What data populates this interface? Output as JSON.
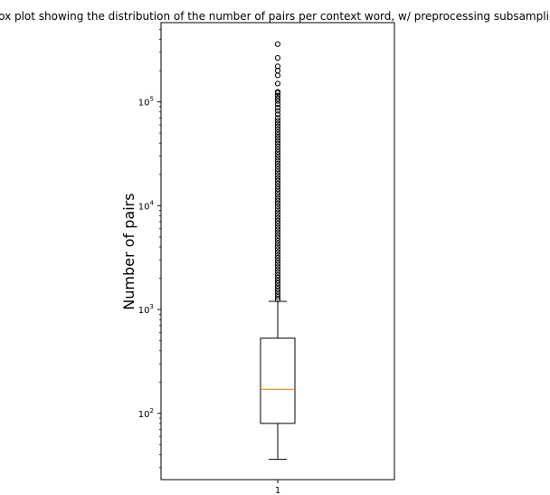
{
  "chart_data": {
    "type": "box",
    "title": "Box plot showing the distribution of the number of pairs per context word, w/ preprocessing subsampling",
    "ylabel": "Number of pairs",
    "xlabel": "",
    "yscale": "log",
    "ylim": [
      23,
      580000
    ],
    "categories": [
      "1"
    ],
    "yticks": [
      {
        "value": 100,
        "base": "10",
        "exp": "2"
      },
      {
        "value": 1000,
        "base": "10",
        "exp": "3"
      },
      {
        "value": 10000,
        "base": "10",
        "exp": "4"
      },
      {
        "value": 100000,
        "base": "10",
        "exp": "5"
      }
    ],
    "boxes": [
      {
        "category": "1",
        "whisker_low": 36,
        "q1": 80,
        "median": 170,
        "q3": 530,
        "whisker_high": 1200,
        "outliers": [
          1250,
          1320,
          1400,
          1490,
          1580,
          1680,
          1790,
          1900,
          2020,
          2150,
          2290,
          2440,
          2600,
          2770,
          2950,
          3140,
          3350,
          3570,
          3800,
          4050,
          4320,
          4600,
          4900,
          5220,
          5560,
          5920,
          6300,
          6720,
          7160,
          7630,
          8130,
          8660,
          9230,
          9840,
          10500,
          11200,
          11900,
          12700,
          13500,
          14400,
          15300,
          16300,
          17400,
          18500,
          19700,
          21000,
          22400,
          23900,
          25400,
          27100,
          28900,
          30800,
          32800,
          34900,
          37200,
          39600,
          42200,
          45000,
          47900,
          51000,
          54400,
          58000,
          61800,
          65800,
          70000,
          76000,
          82000,
          88000,
          95000,
          102000,
          108000,
          115000,
          122000,
          125000,
          150000,
          180000,
          200000,
          220000,
          265000,
          360000
        ]
      }
    ],
    "colors": {
      "median": "#ff7f0e",
      "box": "#000000"
    },
    "grid": false
  }
}
